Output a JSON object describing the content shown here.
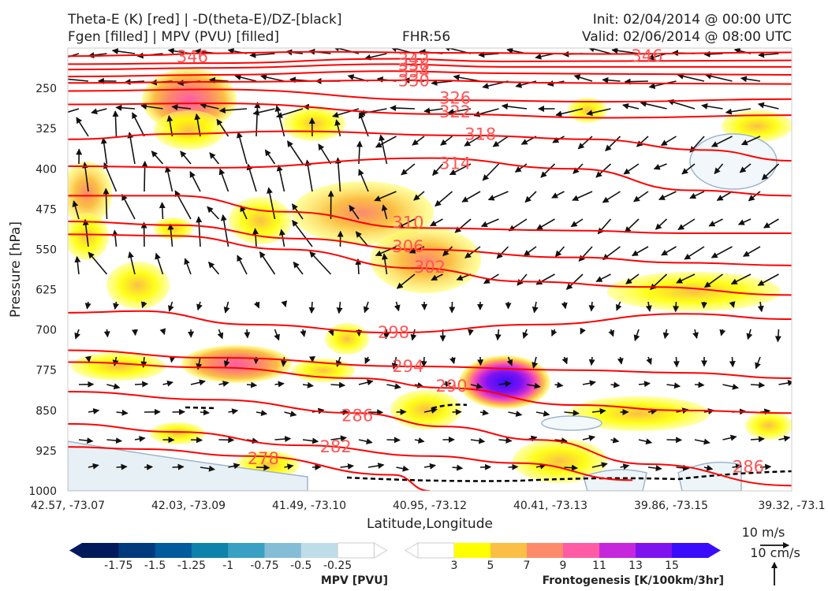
{
  "header": {
    "title_line1": "Theta-E (K) [red] | -D(theta-E)/DZ-[black]",
    "title_line2": "Fgen [filled] | MPV (PVU) [filled]",
    "fhr": "FHR:56",
    "init": "Init: 02/04/2014 @ 00:00 UTC",
    "valid": "Valid: 02/06/2014 @ 08:00 UTC"
  },
  "chart_data": {
    "type": "cross-section",
    "xlabel": "Latitude,Longitude",
    "ylabel": "Pressure [hPa]",
    "x_ticks": [
      "42.57, -73.07",
      "42.03, -73.09",
      "41.49, -73.10",
      "40.95, -73.12",
      "40.41, -73.13",
      "39.86, -73.15",
      "39.32, -73.1"
    ],
    "y_ticks": [
      250,
      325,
      400,
      475,
      550,
      625,
      700,
      775,
      850,
      925,
      1000
    ],
    "ylim": [
      1000,
      175
    ],
    "theta_e_contours": [
      {
        "value": 346,
        "label": "346",
        "pts": [
          [
            0.0,
            190
          ],
          [
            0.12,
            188
          ],
          [
            0.18,
            185
          ],
          [
            0.35,
            182
          ],
          [
            0.55,
            184
          ],
          [
            0.75,
            186
          ],
          [
            1.0,
            183
          ]
        ]
      },
      {
        "value": 342,
        "label": "342",
        "pts": [
          [
            0.0,
            205
          ],
          [
            0.2,
            203
          ],
          [
            0.45,
            195
          ],
          [
            0.6,
            200
          ],
          [
            1.0,
            198
          ]
        ]
      },
      {
        "value": 338,
        "label": "338",
        "pts": [
          [
            0.0,
            215
          ],
          [
            0.2,
            212
          ],
          [
            0.45,
            205
          ],
          [
            0.6,
            210
          ],
          [
            1.0,
            210
          ]
        ]
      },
      {
        "value": 334,
        "label": "334",
        "pts": [
          [
            0.0,
            228
          ],
          [
            0.2,
            225
          ],
          [
            0.45,
            218
          ],
          [
            0.6,
            222
          ],
          [
            1.0,
            225
          ]
        ]
      },
      {
        "value": 330,
        "label": "330",
        "pts": [
          [
            0.0,
            240
          ],
          [
            0.2,
            238
          ],
          [
            0.47,
            235
          ],
          [
            0.7,
            240
          ],
          [
            1.0,
            242
          ]
        ]
      },
      {
        "value": 326,
        "label": "326",
        "pts": [
          [
            0.0,
            255
          ],
          [
            0.2,
            252
          ],
          [
            0.52,
            272
          ],
          [
            0.75,
            275
          ],
          [
            1.0,
            270
          ]
        ]
      },
      {
        "value": 322,
        "label": "322",
        "pts": [
          [
            0.0,
            280
          ],
          [
            0.2,
            278
          ],
          [
            0.52,
            298
          ],
          [
            0.75,
            305
          ],
          [
            1.0,
            300
          ]
        ]
      },
      {
        "value": 318,
        "label": "318",
        "pts": [
          [
            0.0,
            345
          ],
          [
            0.15,
            335
          ],
          [
            0.3,
            330
          ],
          [
            0.56,
            338
          ],
          [
            0.72,
            345
          ],
          [
            0.88,
            365
          ],
          [
            1.0,
            385
          ]
        ]
      },
      {
        "value": 314,
        "label": "314",
        "pts": [
          [
            0.0,
            395
          ],
          [
            0.2,
            398
          ],
          [
            0.5,
            380
          ],
          [
            0.7,
            400
          ],
          [
            0.86,
            440
          ],
          [
            1.0,
            450
          ]
        ]
      },
      {
        "value": 310,
        "label": "310",
        "pts": [
          [
            0.0,
            450
          ],
          [
            0.15,
            450
          ],
          [
            0.3,
            480
          ],
          [
            0.48,
            510
          ],
          [
            0.7,
            515
          ],
          [
            0.85,
            520
          ],
          [
            1.0,
            520
          ]
        ]
      },
      {
        "value": 306,
        "label": "306",
        "pts": [
          [
            0.0,
            498
          ],
          [
            0.15,
            505
          ],
          [
            0.32,
            530
          ],
          [
            0.48,
            550
          ],
          [
            0.7,
            565
          ],
          [
            0.85,
            575
          ],
          [
            1.0,
            580
          ]
        ]
      },
      {
        "value": 302,
        "label": "302",
        "pts": [
          [
            0.0,
            522
          ],
          [
            0.15,
            525
          ],
          [
            0.3,
            550
          ],
          [
            0.48,
            585
          ],
          [
            0.63,
            610
          ],
          [
            0.8,
            620
          ],
          [
            1.0,
            635
          ]
        ]
      },
      {
        "value": 298,
        "label": "298",
        "pts": [
          [
            0.0,
            668
          ],
          [
            0.1,
            665
          ],
          [
            0.25,
            690
          ],
          [
            0.45,
            705
          ],
          [
            0.65,
            690
          ],
          [
            0.85,
            670
          ],
          [
            1.0,
            680
          ]
        ]
      },
      {
        "value": 294,
        "label": "294",
        "pts": [
          [
            0.0,
            738
          ],
          [
            0.2,
            752
          ],
          [
            0.48,
            768
          ],
          [
            0.7,
            775
          ],
          [
            0.85,
            780
          ],
          [
            1.0,
            790
          ]
        ]
      },
      {
        "value": 290,
        "label": "290",
        "pts": [
          [
            0.0,
            760
          ],
          [
            0.2,
            770
          ],
          [
            0.4,
            790
          ],
          [
            0.52,
            808
          ],
          [
            0.7,
            840
          ],
          [
            0.85,
            850
          ],
          [
            1.0,
            855
          ]
        ]
      },
      {
        "value": 286,
        "label": "286",
        "pts": [
          [
            0.0,
            815
          ],
          [
            0.2,
            830
          ],
          [
            0.4,
            855
          ],
          [
            0.52,
            880
          ],
          [
            0.65,
            905
          ],
          [
            0.8,
            950
          ],
          [
            1.0,
            990
          ]
        ]
      },
      {
        "value": 282,
        "label": "282",
        "pts": [
          [
            0.0,
            875
          ],
          [
            0.15,
            890
          ],
          [
            0.32,
            915
          ],
          [
            0.5,
            935
          ],
          [
            0.62,
            948
          ],
          [
            0.78,
            980
          ]
        ]
      },
      {
        "value": 278,
        "label": "278",
        "pts": [
          [
            0.0,
            918
          ],
          [
            0.1,
            922
          ],
          [
            0.25,
            935
          ],
          [
            0.45,
            970
          ],
          [
            0.5,
            1000
          ]
        ]
      }
    ],
    "fgen_levels": [
      3,
      5,
      7,
      9,
      11,
      13,
      15
    ],
    "mpv_levels": [
      -1.75,
      -1.5,
      -1.25,
      -1.0,
      -0.75,
      -0.5,
      -0.25
    ],
    "fgen_colors": [
      "#ffff00",
      "#fbbf45",
      "#fd8a6a",
      "#ff5ca5",
      "#c627dc",
      "#7e13f0",
      "#3a0cfb"
    ],
    "mpv_colors": [
      "#001a5c",
      "#003a7d",
      "#005a9c",
      "#0d82ab",
      "#3aa0c3",
      "#85bdd6",
      "#bfdde8"
    ],
    "fgen_label": "Frontogenesis [K/100km/3hr]",
    "mpv_label": "MPV [PVU]",
    "wind_key": {
      "speed": "10 m/s",
      "vertical": "10 cm/s"
    }
  }
}
